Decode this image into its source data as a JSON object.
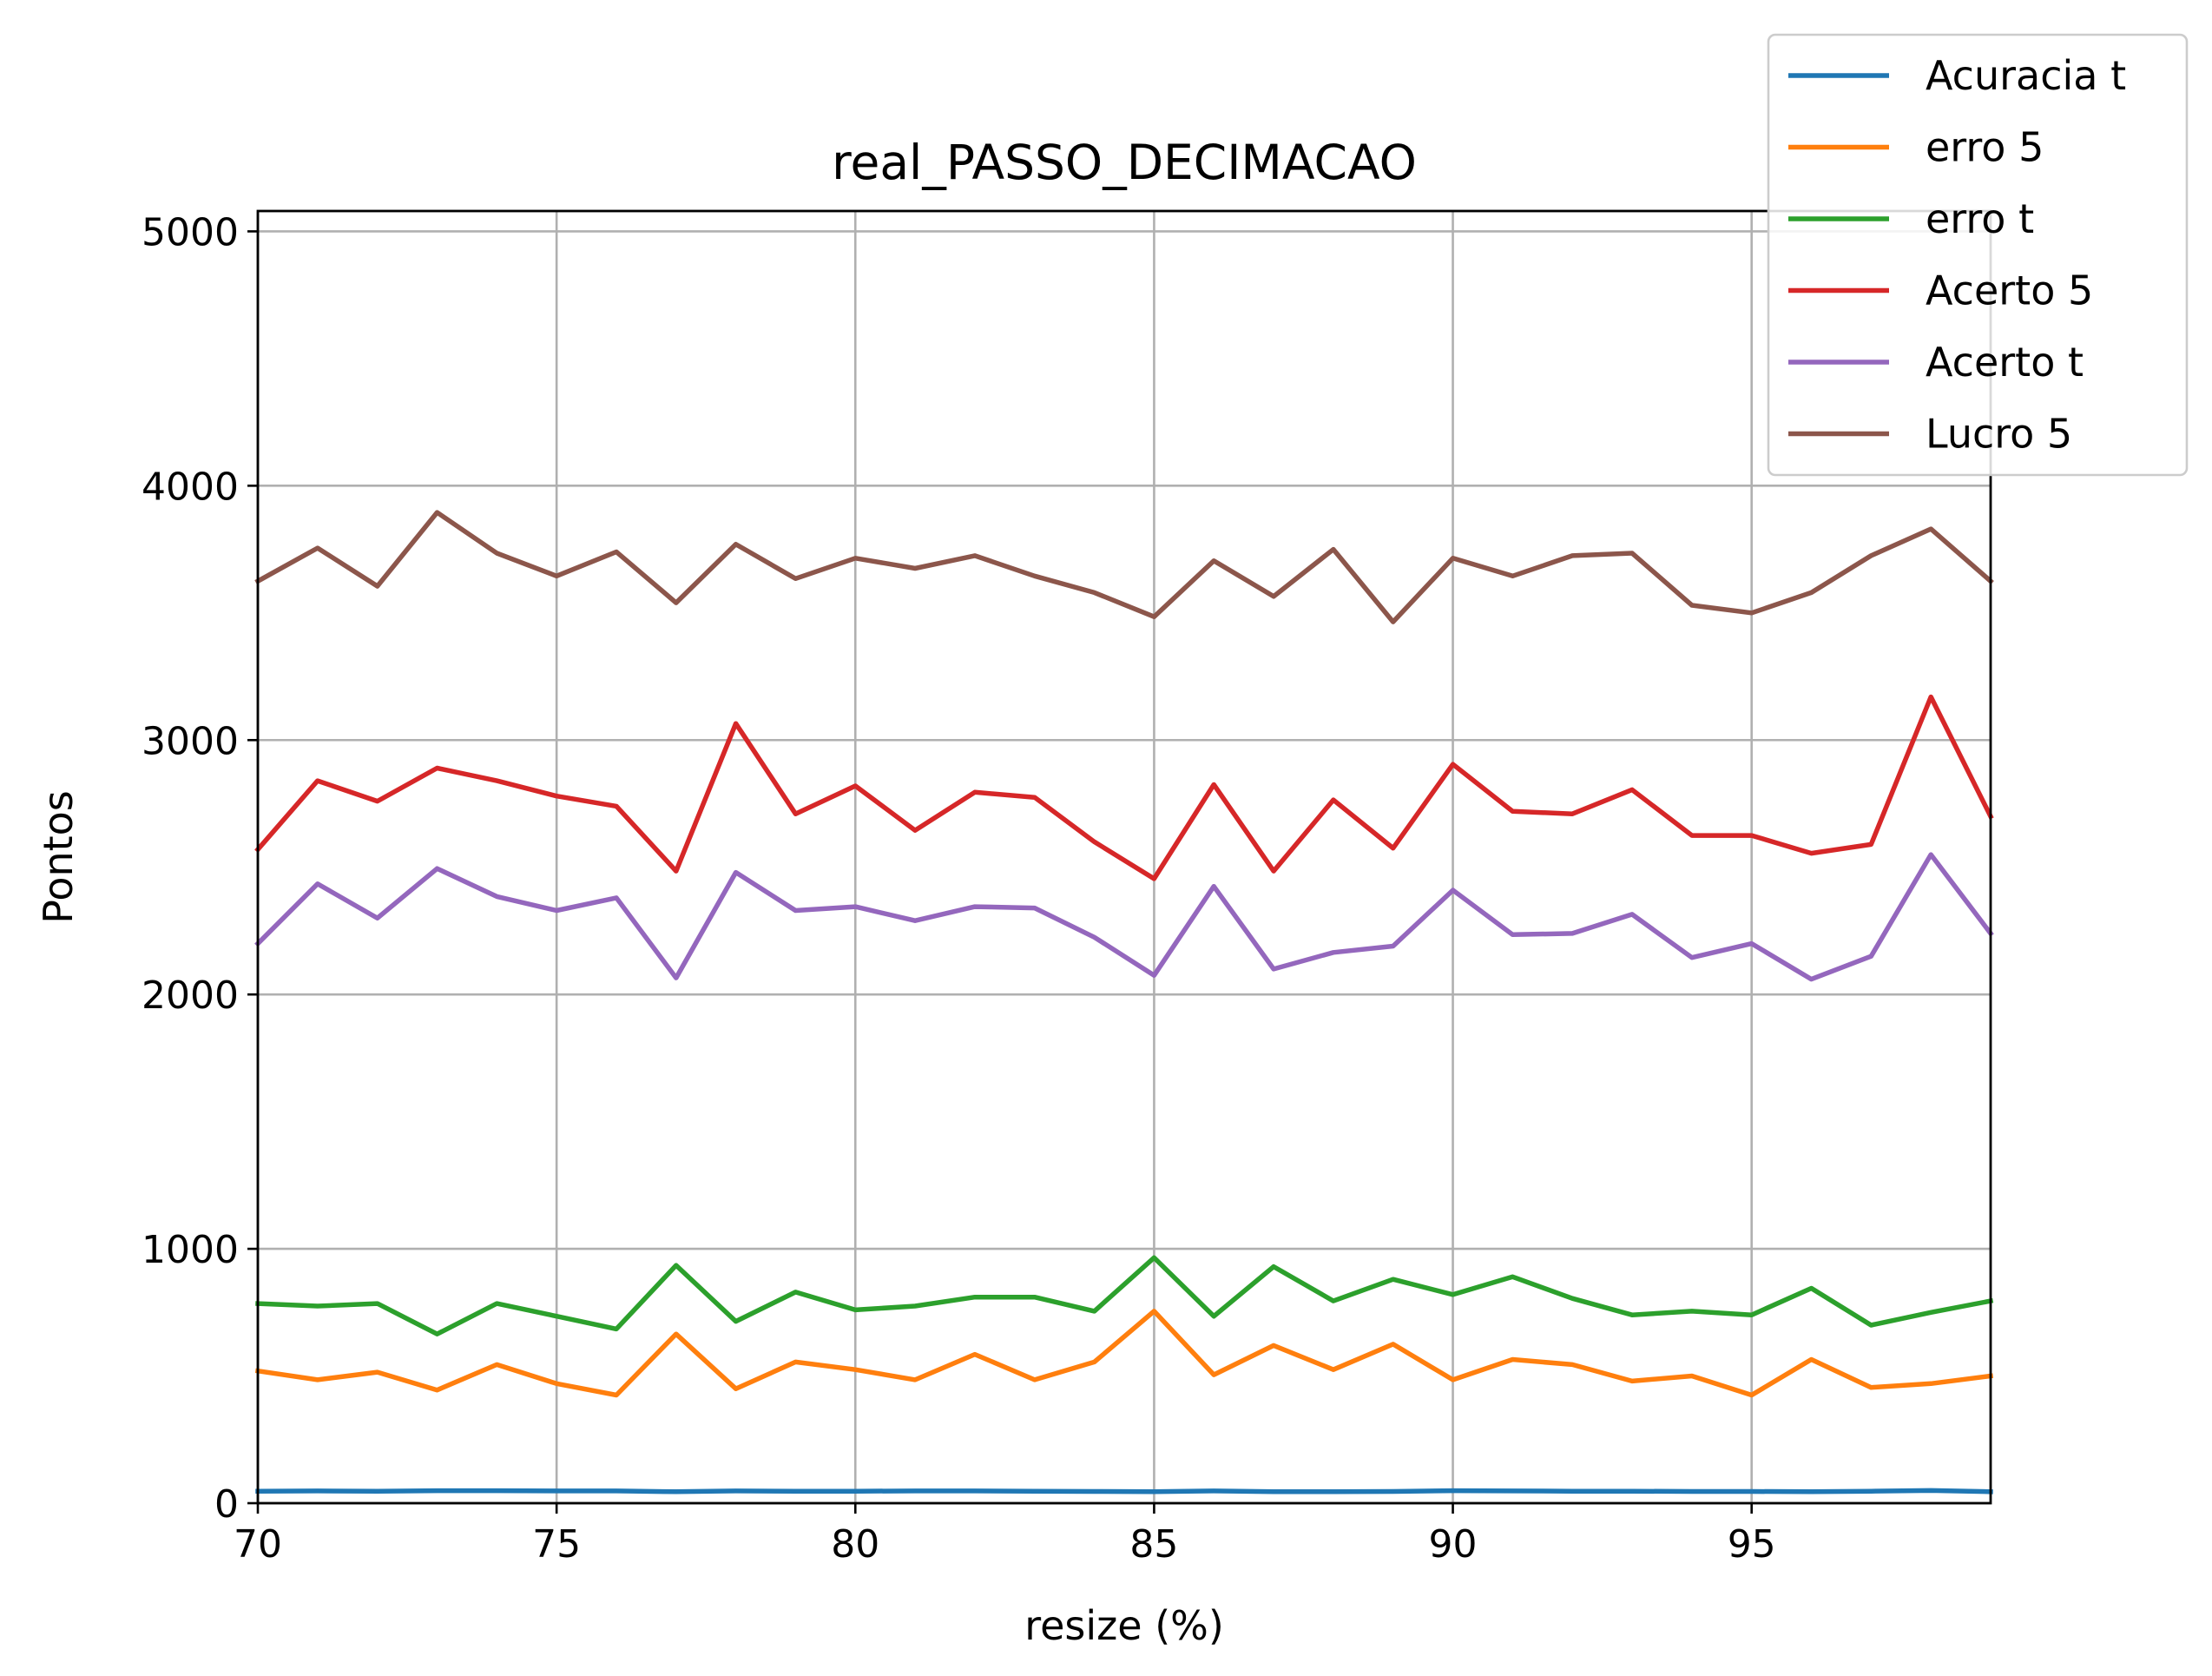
{
  "chart_data": {
    "type": "line",
    "title": "real_PASSO_DECIMACAO",
    "xlabel": "resize (%)",
    "ylabel": "Pontos",
    "xlim": [
      70,
      99
    ],
    "ylim": [
      0,
      5080
    ],
    "xticks": [
      70,
      75,
      80,
      85,
      90,
      95
    ],
    "yticks": [
      0,
      1000,
      2000,
      3000,
      4000,
      5000
    ],
    "grid": true,
    "legend_position": "top-right",
    "x": [
      70,
      71,
      72,
      73,
      74,
      75,
      76,
      77,
      78,
      79,
      80,
      81,
      82,
      83,
      84,
      85,
      86,
      87,
      88,
      89,
      90,
      91,
      92,
      93,
      94,
      95,
      96,
      97,
      98,
      99
    ],
    "series": [
      {
        "name": "Acuracia t",
        "color": "#1f77b4",
        "values": [
          47,
          48,
          47,
          49,
          49,
          48,
          48,
          45,
          48,
          47,
          47,
          48,
          48,
          47,
          46,
          45,
          48,
          45,
          45,
          46,
          49,
          48,
          47,
          47,
          46,
          46,
          45,
          47,
          50,
          45
        ]
      },
      {
        "name": "erro 5",
        "color": "#ff7f0e",
        "values": [
          520,
          485,
          515,
          445,
          545,
          470,
          425,
          665,
          450,
          555,
          525,
          485,
          585,
          485,
          555,
          755,
          505,
          620,
          525,
          625,
          485,
          565,
          545,
          480,
          500,
          425,
          565,
          455,
          470,
          500
        ]
      },
      {
        "name": "erro t",
        "color": "#2ca02c",
        "values": [
          785,
          775,
          785,
          665,
          785,
          735,
          685,
          935,
          715,
          830,
          760,
          775,
          810,
          810,
          755,
          965,
          735,
          930,
          795,
          880,
          820,
          890,
          805,
          740,
          755,
          740,
          845,
          700,
          750,
          795
        ]
      },
      {
        "name": "Acerto 5",
        "color": "#d62728",
        "values": [
          2570,
          2840,
          2760,
          2890,
          2840,
          2780,
          2740,
          2485,
          3065,
          2710,
          2820,
          2645,
          2795,
          2775,
          2600,
          2455,
          2825,
          2485,
          2765,
          2575,
          2905,
          2720,
          2710,
          2805,
          2625,
          2625,
          2555,
          2590,
          3170,
          2700
        ]
      },
      {
        "name": "Acerto t",
        "color": "#9467bd",
        "values": [
          2200,
          2435,
          2300,
          2495,
          2385,
          2330,
          2380,
          2065,
          2480,
          2330,
          2345,
          2290,
          2345,
          2340,
          2225,
          2075,
          2425,
          2100,
          2165,
          2190,
          2410,
          2235,
          2240,
          2315,
          2145,
          2200,
          2060,
          2150,
          2550,
          2240
        ]
      },
      {
        "name": "Lucro 5",
        "color": "#8c564b",
        "values": [
          3625,
          3755,
          3605,
          3895,
          3735,
          3645,
          3740,
          3540,
          3770,
          3635,
          3715,
          3675,
          3725,
          3645,
          3580,
          3485,
          3705,
          3565,
          3750,
          3465,
          3715,
          3645,
          3725,
          3735,
          3530,
          3500,
          3580,
          3725,
          3830,
          3625
        ]
      }
    ]
  }
}
